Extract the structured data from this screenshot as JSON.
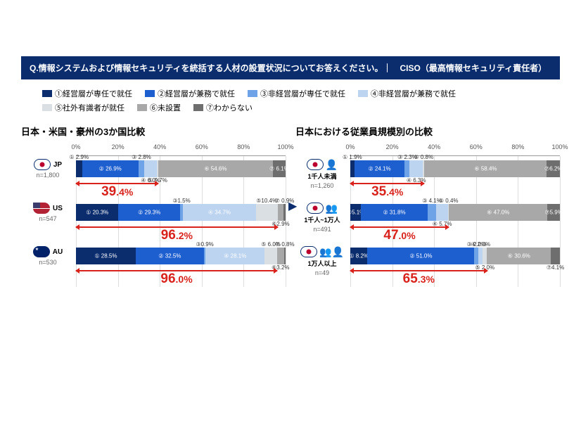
{
  "question": "Q.情報システムおよび情報セキュリティを統括する人材の設置状況についてお答えください。｜　CISO（最高情報セキュリティ責任者）",
  "legend": [
    {
      "label": "①経営層が専任で就任",
      "color": "#0b2d6e"
    },
    {
      "label": "②経営層が兼務で就任",
      "color": "#1e5fd0"
    },
    {
      "label": "③非経営層が専任で就任",
      "color": "#6ea3e8"
    },
    {
      "label": "④非経営層が兼務で就任",
      "color": "#bcd4f0"
    },
    {
      "label": "⑤社外有識者が就任",
      "color": "#d9dfe2"
    },
    {
      "label": "⑥未設置",
      "color": "#a8a8a8"
    },
    {
      "label": "⑦わからない",
      "color": "#6e6e6e"
    }
  ],
  "axis_ticks": [
    0,
    20,
    40,
    60,
    80,
    100
  ],
  "left_title": "日本・米国・豪州の3か国比較",
  "right_title": "日本における従業員規模別の比較",
  "left_rows": [
    {
      "flag": "jp",
      "code": "JP",
      "n": "n=1,800",
      "arrow_pct": "39.4%",
      "arrow_to": 39.4,
      "segs": [
        {
          "c": 0,
          "v": 2.9,
          "t": "① 2.9%",
          "pos": "top"
        },
        {
          "c": 1,
          "v": 26.9,
          "t": "② 26.9%",
          "pos": "in"
        },
        {
          "c": 2,
          "v": 2.8,
          "t": "③ 2.8%",
          "pos": "top"
        },
        {
          "c": 3,
          "v": 6.0,
          "t": "④ 6.0%",
          "pos": "bot"
        },
        {
          "c": 4,
          "v": 0.7,
          "t": "⑤ 0.7%",
          "pos": "bot"
        },
        {
          "c": 5,
          "v": 54.6,
          "t": "⑥ 54.6%",
          "pos": "in"
        },
        {
          "c": 6,
          "v": 6.1,
          "t": "⑦ 6.1%",
          "pos": "in"
        }
      ]
    },
    {
      "flag": "us",
      "code": "US",
      "n": "n=547",
      "arrow_pct": "96.2%",
      "arrow_to": 96.2,
      "segs": [
        {
          "c": 0,
          "v": 20.3,
          "t": "① 20.3%",
          "pos": "in"
        },
        {
          "c": 1,
          "v": 29.3,
          "t": "② 29.3%",
          "pos": "in"
        },
        {
          "c": 2,
          "v": 1.5,
          "t": "③1.5%",
          "pos": "top"
        },
        {
          "c": 3,
          "v": 34.7,
          "t": "④ 34.7%",
          "pos": "in"
        },
        {
          "c": 4,
          "v": 10.4,
          "t": "⑤10.4%",
          "pos": "top"
        },
        {
          "c": 5,
          "v": 2.9,
          "t": "⑥2.9%",
          "pos": "bot"
        },
        {
          "c": 6,
          "v": 0.9,
          "t": "⑦ 0.9%",
          "pos": "top"
        }
      ]
    },
    {
      "flag": "au",
      "code": "AU",
      "n": "n=530",
      "arrow_pct": "96.0%",
      "arrow_to": 96.0,
      "segs": [
        {
          "c": 0,
          "v": 28.5,
          "t": "① 28.5%",
          "pos": "in"
        },
        {
          "c": 1,
          "v": 32.5,
          "t": "② 32.5%",
          "pos": "in"
        },
        {
          "c": 2,
          "v": 0.9,
          "t": "③0.9%",
          "pos": "top"
        },
        {
          "c": 3,
          "v": 28.1,
          "t": "④ 28.1%",
          "pos": "in"
        },
        {
          "c": 4,
          "v": 6.0,
          "t": "⑤ 6.0%",
          "pos": "top"
        },
        {
          "c": 5,
          "v": 3.2,
          "t": "⑥3.2%",
          "pos": "bot"
        },
        {
          "c": 6,
          "v": 0.8,
          "t": "⑦ 0.8%",
          "pos": "top"
        }
      ]
    }
  ],
  "right_rows": [
    {
      "flag": "jp",
      "code": "",
      "sub": "1千人未満",
      "icon": "1",
      "n": "n=1,260",
      "arrow_pct": "35.4%",
      "arrow_to": 35.4,
      "segs": [
        {
          "c": 0,
          "v": 1.9,
          "t": "① 1.9%",
          "pos": "top"
        },
        {
          "c": 1,
          "v": 24.1,
          "t": "② 24.1%",
          "pos": "in"
        },
        {
          "c": 2,
          "v": 2.3,
          "t": "③ 2.3%",
          "pos": "top"
        },
        {
          "c": 3,
          "v": 6.3,
          "t": "④ 6.3%",
          "pos": "bot"
        },
        {
          "c": 4,
          "v": 0.8,
          "t": "⑤ 0.8%",
          "pos": "top"
        },
        {
          "c": 5,
          "v": 58.4,
          "t": "⑥ 58.4%",
          "pos": "in"
        },
        {
          "c": 6,
          "v": 6.2,
          "t": "⑦6.2%",
          "pos": "in"
        }
      ]
    },
    {
      "flag": "jp",
      "code": "",
      "sub": "1千人~1万人",
      "icon": "2",
      "n": "n=491",
      "arrow_pct": "47.0%",
      "arrow_to": 47.0,
      "segs": [
        {
          "c": 0,
          "v": 5.1,
          "t": "①5.1%",
          "pos": "in"
        },
        {
          "c": 1,
          "v": 31.8,
          "t": "② 31.8%",
          "pos": "in"
        },
        {
          "c": 2,
          "v": 4.1,
          "t": "③ 4.1%",
          "pos": "top"
        },
        {
          "c": 3,
          "v": 5.7,
          "t": "④ 5.7%",
          "pos": "bot"
        },
        {
          "c": 4,
          "v": 0.4,
          "t": "⑤ 0.4%",
          "pos": "top"
        },
        {
          "c": 5,
          "v": 47.0,
          "t": "⑥ 47.0%",
          "pos": "in"
        },
        {
          "c": 6,
          "v": 5.9,
          "t": "⑦5.9%",
          "pos": "in"
        }
      ]
    },
    {
      "flag": "jp",
      "code": "",
      "sub": "1万人以上",
      "icon": "3",
      "n": "n=49",
      "arrow_pct": "65.3%",
      "arrow_to": 65.3,
      "segs": [
        {
          "c": 0,
          "v": 8.2,
          "t": "① 8.2%",
          "pos": "in"
        },
        {
          "c": 1,
          "v": 51.0,
          "t": "② 51.0%",
          "pos": "in"
        },
        {
          "c": 2,
          "v": 2.0,
          "t": "③ 2.0%",
          "pos": "top"
        },
        {
          "c": 3,
          "v": 2.0,
          "t": "④ 2.0%",
          "pos": "top"
        },
        {
          "c": 4,
          "v": 2.0,
          "t": "⑤ 2.0%",
          "pos": "bot"
        },
        {
          "c": 5,
          "v": 30.6,
          "t": "⑥ 30.6%",
          "pos": "in"
        },
        {
          "c": 6,
          "v": 4.1,
          "t": "⑦4.1%",
          "pos": "bot"
        }
      ]
    }
  ]
}
